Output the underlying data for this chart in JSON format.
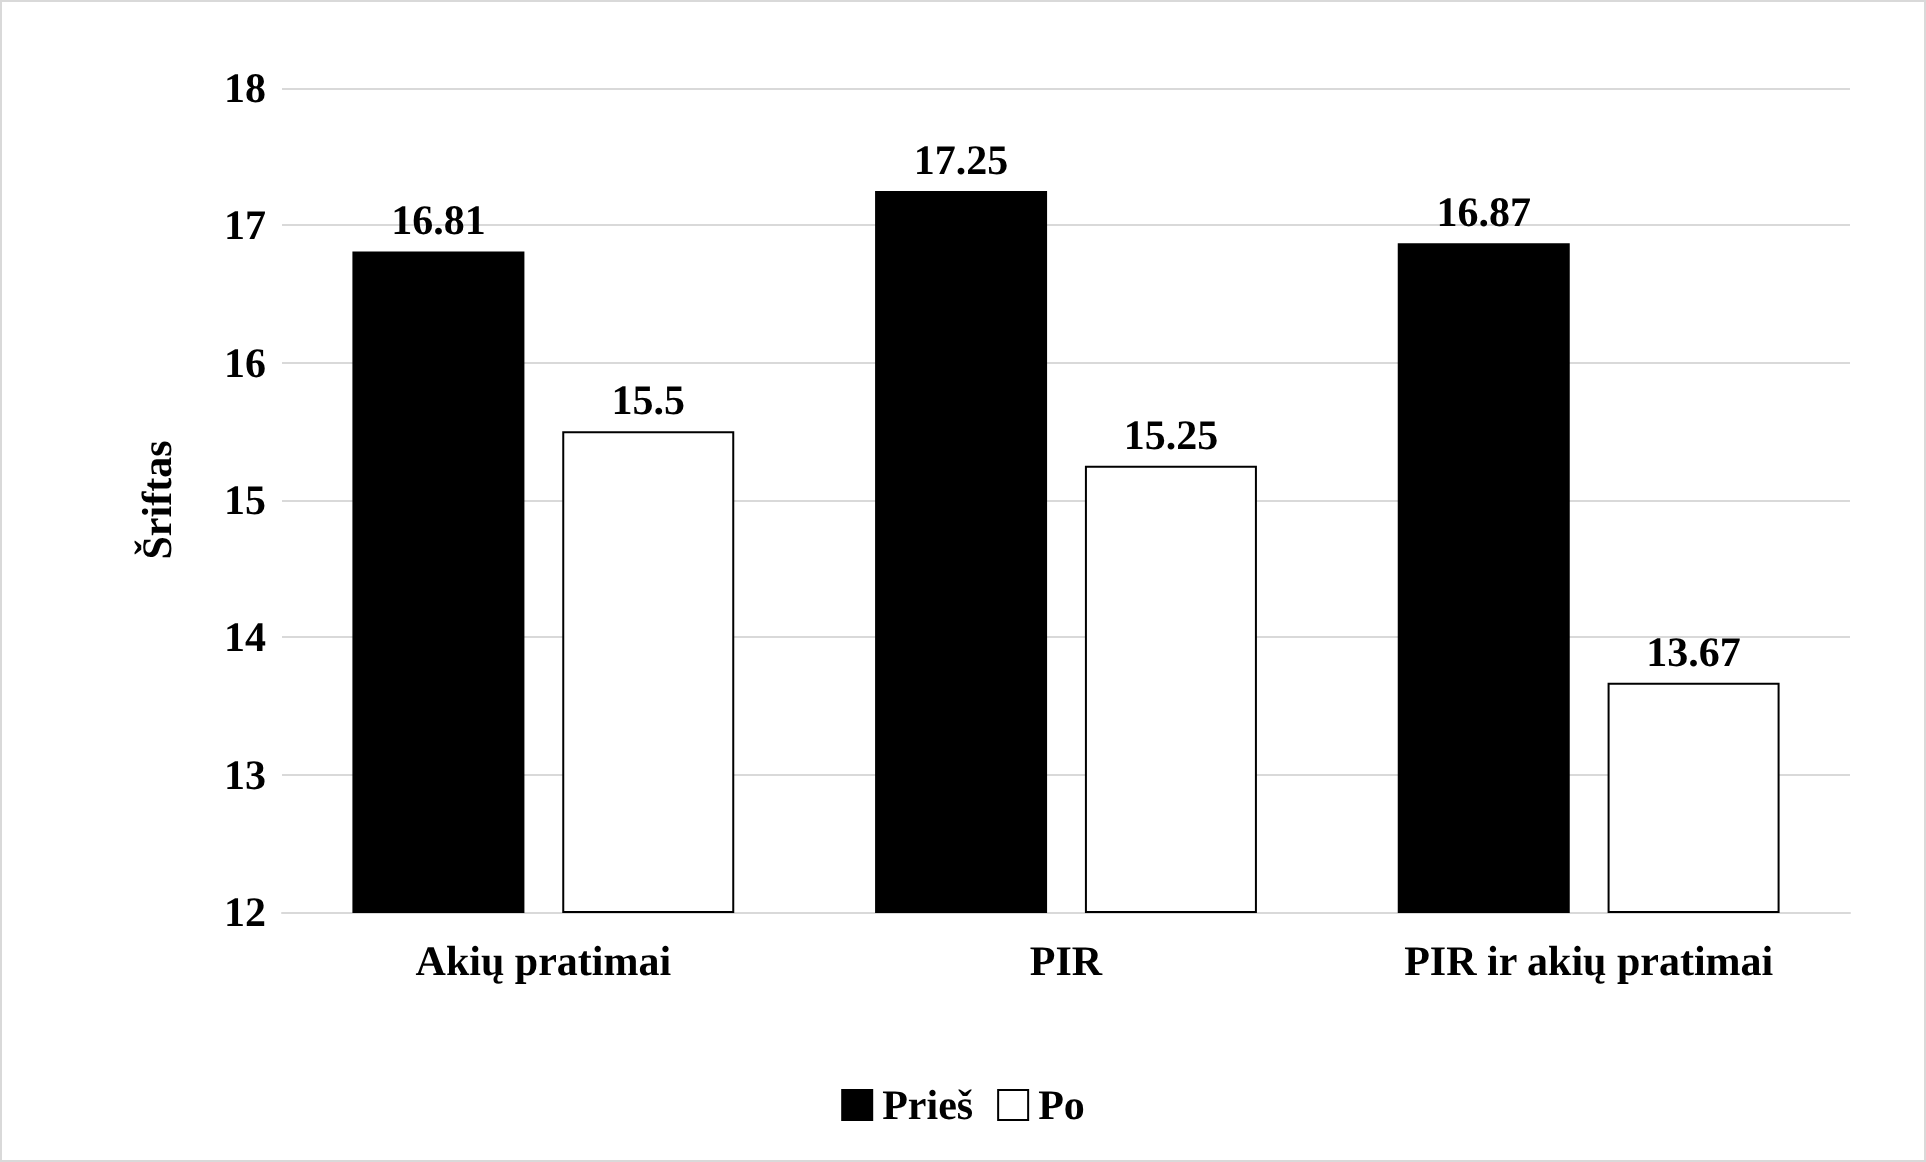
{
  "chart_data": {
    "type": "bar",
    "ylabel": "Šriftas",
    "categories": [
      "Akių pratimai",
      "PIR",
      "PIR ir akių pratimai"
    ],
    "series": [
      {
        "name": "Prieš",
        "color": "#000000",
        "values": [
          16.81,
          17.25,
          16.87
        ]
      },
      {
        "name": "Po",
        "color": "#ffffff",
        "values": [
          15.5,
          15.25,
          13.67
        ]
      }
    ],
    "ylim": [
      12,
      18
    ],
    "yticks": [
      12,
      13,
      14,
      15,
      16,
      17,
      18
    ],
    "grid": "y",
    "legend": "bottom",
    "data_labels": true
  }
}
